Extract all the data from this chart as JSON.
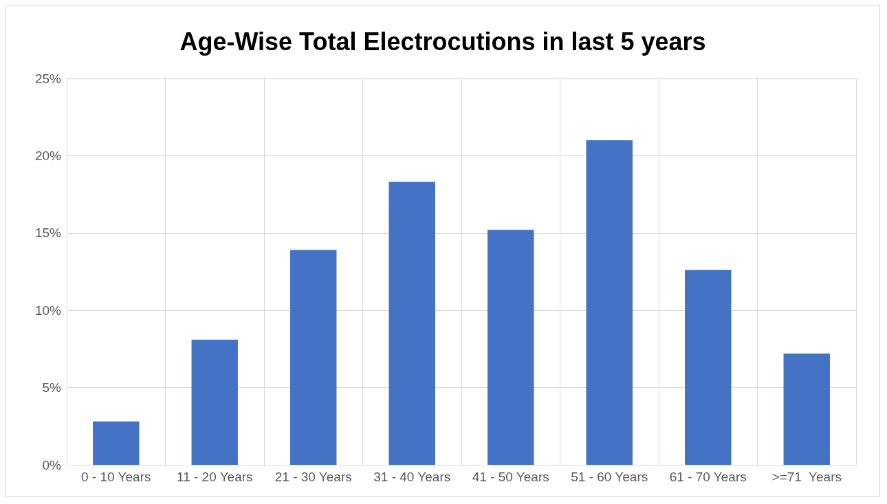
{
  "chart_data": {
    "type": "bar",
    "title": "Age-Wise Total Electrocutions in last 5 years",
    "categories": [
      "0 - 10 Years",
      "11 - 20 Years",
      "21 - 30 Years",
      "31 - 40 Years",
      "41 - 50 Years",
      "51 - 60 Years",
      "61 - 70 Years",
      ">=71  Years"
    ],
    "values": [
      2.8,
      8.1,
      13.9,
      18.3,
      15.2,
      21.0,
      12.6,
      7.2
    ],
    "color": "#4472c4",
    "ylim": [
      0,
      25
    ],
    "yticks": [
      {
        "value": 0,
        "label": "0%"
      },
      {
        "value": 5,
        "label": "5%"
      },
      {
        "value": 10,
        "label": "10%"
      },
      {
        "value": 15,
        "label": "15%"
      },
      {
        "value": 20,
        "label": "20%"
      },
      {
        "value": 25,
        "label": "25%"
      }
    ],
    "grid": true
  }
}
